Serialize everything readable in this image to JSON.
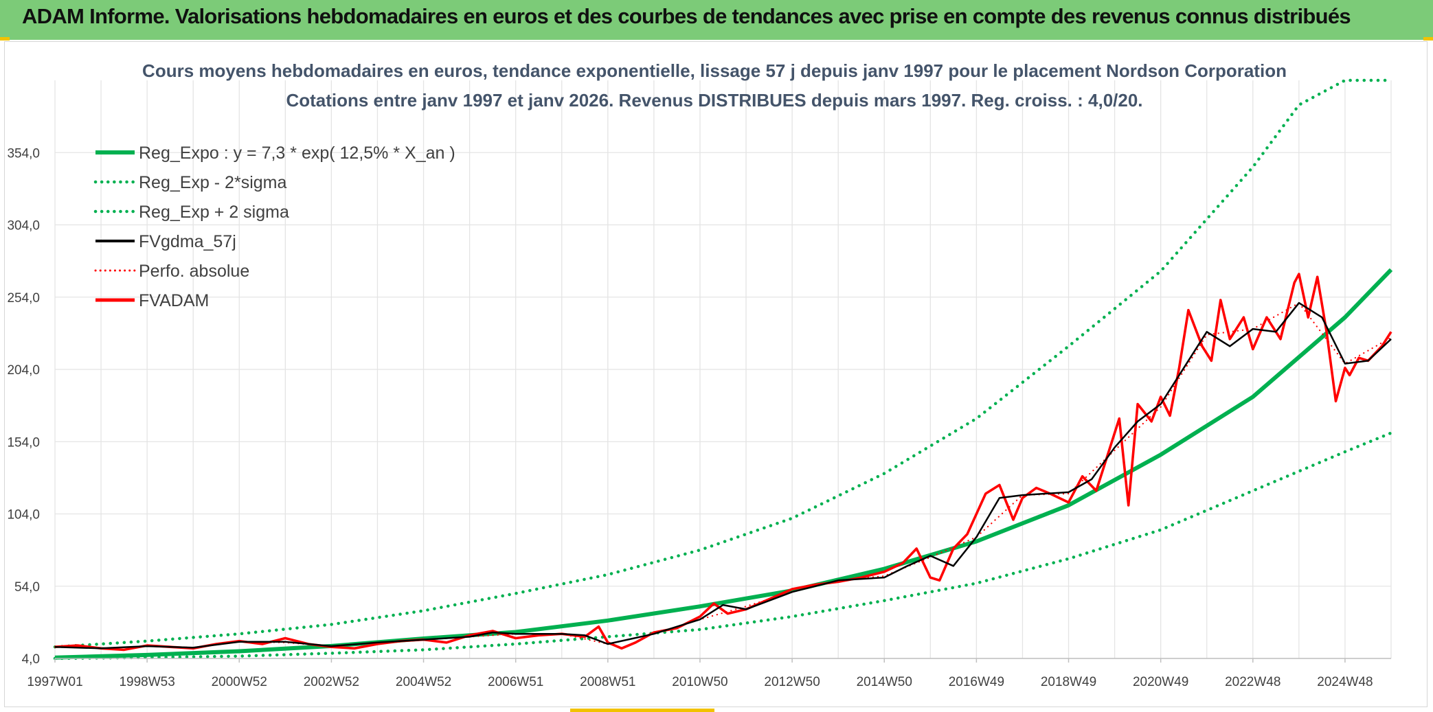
{
  "header": {
    "title": "ADAM Informe. Valorisations hebdomadaires en euros et des courbes de tendances avec prise en compte des revenus connus distribués"
  },
  "colors": {
    "banner": "#7ccb78",
    "trend": "#00b050",
    "smooth": "#000000",
    "price": "#ff0000",
    "grid": "#e4e4e4"
  },
  "chart_data": {
    "type": "line",
    "title": "Cours moyens hebdomadaires en euros, tendance exponentielle, lissage 57 j depuis janv 1997 pour le placement Nordson Corporation",
    "subtitle": "Cotations entre janv 1997 et janv 2026. Revenus DISTRIBUES depuis mars 1997. Reg. croiss. : 4,0/20.",
    "xlabel": "",
    "ylabel": "",
    "ylim": [
      4,
      404
    ],
    "xlim": [
      1997.0,
      2026.0
    ],
    "y_ticks": [
      "4,0",
      "54,0",
      "104,0",
      "154,0",
      "204,0",
      "254,0",
      "304,0",
      "354,0"
    ],
    "x_ticks": [
      {
        "label": "1997W01",
        "year": 1997.0
      },
      {
        "label": "1998W53",
        "year": 1999.0
      },
      {
        "label": "2000W52",
        "year": 2001.0
      },
      {
        "label": "2002W52",
        "year": 2003.0
      },
      {
        "label": "2004W52",
        "year": 2005.0
      },
      {
        "label": "2006W51",
        "year": 2007.0
      },
      {
        "label": "2008W51",
        "year": 2009.0
      },
      {
        "label": "2010W50",
        "year": 2011.0
      },
      {
        "label": "2012W50",
        "year": 2013.0
      },
      {
        "label": "2014W50",
        "year": 2015.0
      },
      {
        "label": "2016W49",
        "year": 2017.0
      },
      {
        "label": "2018W49",
        "year": 2019.0
      },
      {
        "label": "2020W49",
        "year": 2021.0
      },
      {
        "label": "2022W48",
        "year": 2023.0
      },
      {
        "label": "2024W48",
        "year": 2025.0
      }
    ],
    "legend": [
      {
        "key": "reg",
        "label": "Reg_Expo : y = 7,3 * exp( 12,5% *  X_an )",
        "style": "solid-thick-green"
      },
      {
        "key": "low",
        "label": "Reg_Exp - 2*sigma",
        "style": "dotted-green"
      },
      {
        "key": "high",
        "label": "Reg_Exp + 2 sigma",
        "style": "dotted-green"
      },
      {
        "key": "smooth",
        "label": "FVgdma_57j",
        "style": "solid-black"
      },
      {
        "key": "perfo",
        "label": "Perfo. absolue",
        "style": "dotted-red"
      },
      {
        "key": "fvadam",
        "label": "FVADAM",
        "style": "solid-thick-red"
      }
    ],
    "series": [
      {
        "name": "Reg_Expo",
        "x": [
          1997.0,
          1999.0,
          2001.0,
          2003.0,
          2005.0,
          2007.0,
          2009.0,
          2011.0,
          2013.0,
          2015.0,
          2017.0,
          2019.0,
          2021.0,
          2023.0,
          2025.0,
          2026.1
        ],
        "values": [
          4.6,
          6.4,
          9.0,
          12.6,
          17.8,
          22.3,
          30.2,
          40.0,
          51.0,
          66.0,
          85.0,
          110.0,
          145.0,
          185.0,
          240.0,
          273.0
        ]
      },
      {
        "name": "Reg_Exp - 2*sigma",
        "x": [
          1997.0,
          1999.0,
          2001.0,
          2003.0,
          2005.0,
          2007.0,
          2009.0,
          2011.0,
          2013.0,
          2015.0,
          2017.0,
          2019.0,
          2021.0,
          2023.0,
          2025.0,
          2026.0
        ],
        "values": [
          4.0,
          4.6,
          5.6,
          7.6,
          10.0,
          14.0,
          19.0,
          24.0,
          33.0,
          44.0,
          56.0,
          73.0,
          93.0,
          120.0,
          147.0,
          160.0
        ]
      },
      {
        "name": "Reg_Exp + 2 sigma",
        "x": [
          1997.0,
          1999.0,
          2001.0,
          2003.0,
          2005.0,
          2007.0,
          2009.0,
          2011.0,
          2013.0,
          2015.0,
          2017.0,
          2019.0,
          2021.0,
          2023.0,
          2024.0,
          2025.0,
          2026.0
        ],
        "values": [
          12.0,
          16.0,
          21.0,
          27.5,
          37.0,
          49.0,
          62.0,
          79.0,
          101.0,
          132.0,
          170.0,
          220.0,
          272.0,
          344.0,
          387.0,
          404.0,
          404.0
        ]
      },
      {
        "name": "FVgdma_57j",
        "x": [
          1997.0,
          1998.0,
          1999.0,
          2000.0,
          2001.0,
          2002.0,
          2003.0,
          2004.0,
          2005.0,
          2006.0,
          2006.5,
          2007.0,
          2008.0,
          2008.5,
          2009.0,
          2010.0,
          2011.0,
          2011.5,
          2012.0,
          2013.0,
          2014.0,
          2015.0,
          2015.5,
          2016.0,
          2016.5,
          2017.0,
          2017.5,
          2018.0,
          2019.0,
          2019.5,
          2020.0,
          2020.5,
          2021.0,
          2021.5,
          2022.0,
          2022.5,
          2023.0,
          2023.5,
          2024.0,
          2024.5,
          2025.0,
          2025.5,
          2026.0
        ],
        "values": [
          12.0,
          11.0,
          12.5,
          11.5,
          15.5,
          15.5,
          12.5,
          15.0,
          17.0,
          19.0,
          22.0,
          21.0,
          21.0,
          20.0,
          14.0,
          21.0,
          31.0,
          41.0,
          38.0,
          50.0,
          58.0,
          60.0,
          68.0,
          75.0,
          68.0,
          88.0,
          115.0,
          117.0,
          119.0,
          128.0,
          150.0,
          168.0,
          180.0,
          205.0,
          230.0,
          220.0,
          232.0,
          230.0,
          250.0,
          240.0,
          208.0,
          210.0,
          225.0
        ]
      },
      {
        "name": "Perfo. absolue",
        "x": [
          1997.0,
          1998.0,
          1999.0,
          2000.0,
          2001.0,
          2002.0,
          2003.0,
          2004.0,
          2005.0,
          2006.0,
          2007.0,
          2008.0,
          2009.0,
          2010.0,
          2011.0,
          2012.0,
          2013.0,
          2014.0,
          2015.0,
          2016.0,
          2017.0,
          2018.0,
          2019.0,
          2020.0,
          2021.0,
          2022.0,
          2023.0,
          2024.0,
          2025.0,
          2026.0
        ],
        "values": [
          12.0,
          11.0,
          12.5,
          11.5,
          15.5,
          15.0,
          12.5,
          15.0,
          17.0,
          19.0,
          21.0,
          21.0,
          14.0,
          21.0,
          31.0,
          40.0,
          50.0,
          58.0,
          61.0,
          74.0,
          88.0,
          117.0,
          118.0,
          148.0,
          178.0,
          228.0,
          232.0,
          250.0,
          208.0,
          226.0
        ]
      },
      {
        "name": "FVADAM",
        "x": [
          1997.0,
          1997.5,
          1998.0,
          1998.5,
          1999.0,
          1999.5,
          2000.0,
          2000.5,
          2001.0,
          2001.5,
          2002.0,
          2002.5,
          2003.0,
          2003.5,
          2004.0,
          2004.5,
          2005.0,
          2005.5,
          2006.0,
          2006.5,
          2007.0,
          2007.5,
          2008.0,
          2008.5,
          2008.8,
          2009.0,
          2009.3,
          2009.6,
          2010.0,
          2010.5,
          2011.0,
          2011.3,
          2011.6,
          2012.0,
          2012.5,
          2013.0,
          2013.5,
          2014.0,
          2014.5,
          2015.0,
          2015.4,
          2015.7,
          2016.0,
          2016.2,
          2016.5,
          2016.8,
          2017.2,
          2017.5,
          2017.8,
          2018.0,
          2018.3,
          2018.6,
          2019.0,
          2019.3,
          2019.6,
          2019.8,
          2020.0,
          2020.1,
          2020.3,
          2020.5,
          2020.8,
          2021.0,
          2021.2,
          2021.4,
          2021.6,
          2021.9,
          2022.1,
          2022.3,
          2022.5,
          2022.8,
          2023.0,
          2023.3,
          2023.6,
          2023.9,
          2024.0,
          2024.2,
          2024.4,
          2024.6,
          2024.8,
          2025.0,
          2025.1,
          2025.3,
          2025.5,
          2025.8,
          2026.0
        ],
        "values": [
          12.0,
          13.0,
          11.0,
          10.0,
          13.0,
          12.0,
          11.0,
          14.0,
          16.0,
          14.0,
          18.0,
          14.0,
          12.0,
          11.0,
          14.0,
          16.0,
          17.0,
          15.0,
          20.0,
          23.0,
          18.0,
          20.0,
          21.0,
          19.0,
          26.0,
          15.0,
          11.0,
          15.0,
          22.0,
          25.0,
          33.0,
          42.0,
          35.0,
          38.0,
          45.0,
          52.0,
          55.0,
          57.0,
          60.0,
          64.0,
          70.0,
          80.0,
          60.0,
          58.0,
          80.0,
          90.0,
          118.0,
          124.0,
          100.0,
          115.0,
          122.0,
          118.0,
          112.0,
          130.0,
          120.0,
          140.0,
          160.0,
          170.0,
          110.0,
          180.0,
          168.0,
          185.0,
          172.0,
          205.0,
          245.0,
          220.0,
          210.0,
          252.0,
          225.0,
          240.0,
          218.0,
          240.0,
          225.0,
          264.0,
          270.0,
          240.0,
          268.0,
          230.0,
          182.0,
          205.0,
          200.0,
          212.0,
          210.0,
          220.0,
          230.0
        ]
      }
    ]
  }
}
